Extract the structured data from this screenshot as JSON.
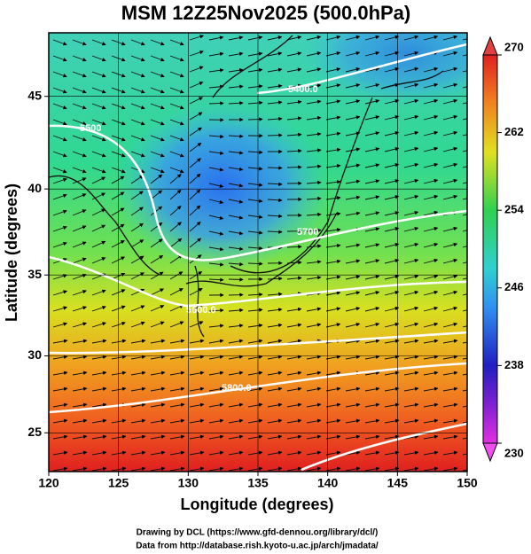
{
  "header": {
    "title": "MSM 12Z25Nov2025 (500.0hPa)"
  },
  "map": {
    "xlabel": "Longitude (degrees)",
    "ylabel": "Latitude  (degrees)",
    "xlim": [
      120,
      150
    ],
    "ylim": [
      22.4,
      48.2
    ],
    "projection": "mercator",
    "xticks": [
      120,
      125,
      130,
      135,
      140,
      145,
      150
    ],
    "yticks": [
      25,
      30,
      35,
      40,
      45
    ],
    "contour_labels": [
      "5400.0",
      "5500",
      "5600.0",
      "5700",
      "5800.0"
    ]
  },
  "colorbar": {
    "lim": [
      230,
      270
    ],
    "ticks": [
      230,
      238,
      246,
      254,
      262,
      270
    ]
  },
  "footer": [
    "Drawing by DCL (https://www.gfd-dennou.org/library/dcl/)",
    "Data from http://database.rish.kyoto-u.ac.jp/arch/jmadata/"
  ]
}
